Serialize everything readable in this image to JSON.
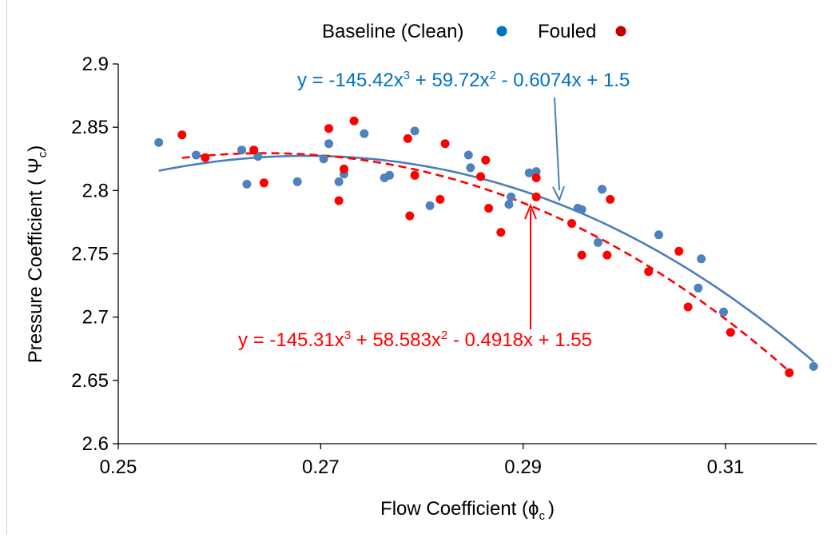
{
  "chart_data": {
    "type": "scatter",
    "title": "",
    "xlabel": {
      "main": "Flow Coefficient (",
      "symbol": "ϕ",
      "subscript": "c",
      "close": ")"
    },
    "ylabel": {
      "main": "Pressure Coefficient ( ",
      "symbol": "Ψ",
      "subscript": "c",
      "close": ")"
    },
    "xlim": [
      0.25,
      0.319
    ],
    "ylim": [
      2.6,
      2.9
    ],
    "xticks": [
      "0.25",
      "0.27",
      "0.29",
      "0.31"
    ],
    "yticks": [
      "2.6",
      "2.65",
      "2.7",
      "2.75",
      "2.8",
      "2.85",
      "2.9"
    ],
    "grid": false,
    "legend": {
      "placement": "top-center",
      "entries": [
        {
          "label": "Baseline  (Clean)",
          "color": "#0070c0"
        },
        {
          "label": "Fouled",
          "color": "#c00000"
        }
      ]
    },
    "series": [
      {
        "name": "Baseline  (Clean)",
        "marker_color": "#4f81bd",
        "points": [
          [
            0.254,
            2.838
          ],
          [
            0.2577,
            2.828
          ],
          [
            0.2622,
            2.832
          ],
          [
            0.2638,
            2.827
          ],
          [
            0.2627,
            2.805
          ],
          [
            0.2677,
            2.807
          ],
          [
            0.2703,
            2.825
          ],
          [
            0.2708,
            2.837
          ],
          [
            0.2718,
            2.807
          ],
          [
            0.2723,
            2.813
          ],
          [
            0.2743,
            2.845
          ],
          [
            0.2763,
            2.81
          ],
          [
            0.2768,
            2.812
          ],
          [
            0.2793,
            2.847
          ],
          [
            0.2808,
            2.788
          ],
          [
            0.2846,
            2.828
          ],
          [
            0.2848,
            2.818
          ],
          [
            0.2888,
            2.795
          ],
          [
            0.2886,
            2.789
          ],
          [
            0.2906,
            2.814
          ],
          [
            0.2913,
            2.815
          ],
          [
            0.2954,
            2.786
          ],
          [
            0.2958,
            2.785
          ],
          [
            0.2978,
            2.801
          ],
          [
            0.2974,
            2.759
          ],
          [
            0.3034,
            2.765
          ],
          [
            0.3076,
            2.746
          ],
          [
            0.3073,
            2.723
          ],
          [
            0.3098,
            2.704
          ],
          [
            0.3187,
            2.661
          ]
        ]
      },
      {
        "name": "Fouled",
        "marker_color": "#ff0000",
        "points": [
          [
            0.2563,
            2.844
          ],
          [
            0.2586,
            2.826
          ],
          [
            0.2634,
            2.832
          ],
          [
            0.2644,
            2.806
          ],
          [
            0.2708,
            2.849
          ],
          [
            0.2718,
            2.792
          ],
          [
            0.2723,
            2.817
          ],
          [
            0.2733,
            2.855
          ],
          [
            0.2786,
            2.841
          ],
          [
            0.2788,
            2.78
          ],
          [
            0.2793,
            2.812
          ],
          [
            0.2818,
            2.793
          ],
          [
            0.2823,
            2.837
          ],
          [
            0.2858,
            2.811
          ],
          [
            0.2863,
            2.824
          ],
          [
            0.2866,
            2.786
          ],
          [
            0.2878,
            2.767
          ],
          [
            0.2913,
            2.81
          ],
          [
            0.2913,
            2.795
          ],
          [
            0.2948,
            2.774
          ],
          [
            0.2958,
            2.749
          ],
          [
            0.2983,
            2.749
          ],
          [
            0.2986,
            2.793
          ],
          [
            0.3024,
            2.736
          ],
          [
            0.3054,
            2.752
          ],
          [
            0.3063,
            2.708
          ],
          [
            0.3105,
            2.688
          ],
          [
            0.3163,
            2.656
          ]
        ]
      }
    ],
    "trendlines": [
      {
        "series": "Baseline  (Clean)",
        "equation": {
          "t1": "y = -145.42x",
          "e1": "3",
          "t2": " + 59.72x",
          "e2": "2",
          "t3": " - 0.6074x + 1.5"
        },
        "coefficients": [
          -145.42,
          59.72,
          -0.6074,
          1.5
        ],
        "color": "#4a7ebb",
        "text_color": "#0070c0",
        "style": "solid",
        "x_range": [
          0.254,
          0.3187
        ]
      },
      {
        "series": "Fouled",
        "equation": {
          "t1": "y = -145.31x",
          "e1": "3",
          "t2": " + 58.583x",
          "e2": "2",
          "t3": " - 0.4918x + 1.55"
        },
        "coefficients": [
          -145.31,
          58.583,
          -0.4918,
          1.55
        ],
        "color": "#ff0000",
        "text_color": "#ff0000",
        "style": "dashed",
        "x_range": [
          0.2563,
          0.3163
        ]
      }
    ]
  }
}
